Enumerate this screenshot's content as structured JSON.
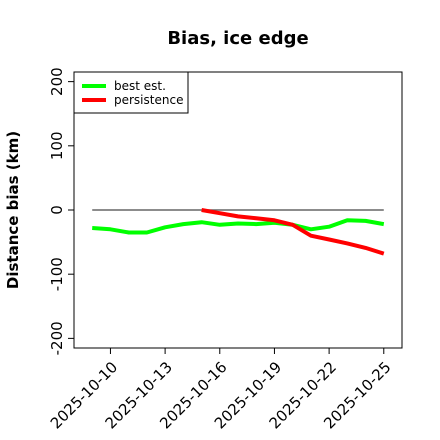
{
  "chart_data": {
    "type": "line",
    "title": "Bias, ice edge",
    "xlabel": "",
    "ylabel": "Distance bias (km)",
    "ylim": [
      -215,
      215
    ],
    "xlim": [
      "2025-10-08",
      "2025-10-26"
    ],
    "yticks": [
      200,
      100,
      0,
      -100,
      -200
    ],
    "xticks": [
      "2025-10-10",
      "2025-10-13",
      "2025-10-16",
      "2025-10-19",
      "2025-10-22",
      "2025-10-25"
    ],
    "reference_line": {
      "y": 0,
      "from": "2025-10-09",
      "to": "2025-10-25",
      "color": "#666666"
    },
    "legend": {
      "position": "top-left"
    },
    "series": [
      {
        "name": "best est.",
        "color": "#00ff00",
        "points": [
          [
            "2025-10-09",
            -28
          ],
          [
            "2025-10-10",
            -30
          ],
          [
            "2025-10-11",
            -35
          ],
          [
            "2025-10-12",
            -35
          ],
          [
            "2025-10-13",
            -27
          ],
          [
            "2025-10-14",
            -22
          ],
          [
            "2025-10-15",
            -19
          ],
          [
            "2025-10-16",
            -23
          ],
          [
            "2025-10-17",
            -21
          ],
          [
            "2025-10-18",
            -22
          ],
          [
            "2025-10-19",
            -20
          ],
          [
            "2025-10-20",
            -23
          ],
          [
            "2025-10-21",
            -30
          ],
          [
            "2025-10-22",
            -26
          ],
          [
            "2025-10-23",
            -16
          ],
          [
            "2025-10-24",
            -17
          ],
          [
            "2025-10-25",
            -22
          ]
        ]
      },
      {
        "name": "persistence",
        "color": "#ff0000",
        "points": [
          [
            "2025-10-15",
            0
          ],
          [
            "2025-10-16",
            -5
          ],
          [
            "2025-10-17",
            -10
          ],
          [
            "2025-10-18",
            -13
          ],
          [
            "2025-10-19",
            -16
          ],
          [
            "2025-10-20",
            -23
          ],
          [
            "2025-10-21",
            -40
          ],
          [
            "2025-10-22",
            -46
          ],
          [
            "2025-10-23",
            -52
          ],
          [
            "2025-10-24",
            -59
          ],
          [
            "2025-10-25",
            -68
          ]
        ]
      }
    ]
  }
}
